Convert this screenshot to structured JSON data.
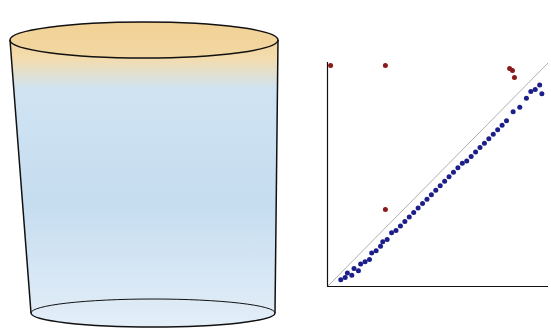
{
  "chart_data": {
    "type": "scatter",
    "xlim": [
      0,
      1
    ],
    "ylim": [
      0,
      1
    ],
    "xticks": [],
    "yticks": [],
    "tick_labels": false,
    "grid": false,
    "series": [
      {
        "color": "#1c1f8a",
        "marker": "circle",
        "values": [
          [
            0.06,
            0.03
          ],
          [
            0.08,
            0.04
          ],
          [
            0.09,
            0.06
          ],
          [
            0.11,
            0.05
          ],
          [
            0.12,
            0.08
          ],
          [
            0.14,
            0.07
          ],
          [
            0.15,
            0.1
          ],
          [
            0.17,
            0.11
          ],
          [
            0.19,
            0.12
          ],
          [
            0.2,
            0.15
          ],
          [
            0.22,
            0.16
          ],
          [
            0.24,
            0.18
          ],
          [
            0.25,
            0.2
          ],
          [
            0.27,
            0.21
          ],
          [
            0.29,
            0.24
          ],
          [
            0.31,
            0.25
          ],
          [
            0.33,
            0.27
          ],
          [
            0.35,
            0.29
          ],
          [
            0.37,
            0.31
          ],
          [
            0.39,
            0.33
          ],
          [
            0.41,
            0.35
          ],
          [
            0.43,
            0.37
          ],
          [
            0.45,
            0.39
          ],
          [
            0.47,
            0.41
          ],
          [
            0.49,
            0.43
          ],
          [
            0.51,
            0.45
          ],
          [
            0.53,
            0.47
          ],
          [
            0.55,
            0.49
          ],
          [
            0.57,
            0.51
          ],
          [
            0.59,
            0.53
          ],
          [
            0.61,
            0.55
          ],
          [
            0.63,
            0.56
          ],
          [
            0.65,
            0.58
          ],
          [
            0.67,
            0.6
          ],
          [
            0.69,
            0.62
          ],
          [
            0.71,
            0.64
          ],
          [
            0.73,
            0.66
          ],
          [
            0.75,
            0.68
          ],
          [
            0.77,
            0.7
          ],
          [
            0.79,
            0.72
          ],
          [
            0.81,
            0.74
          ],
          [
            0.84,
            0.78
          ],
          [
            0.87,
            0.8
          ],
          [
            0.9,
            0.84
          ],
          [
            0.92,
            0.87
          ],
          [
            0.94,
            0.88
          ],
          [
            0.96,
            0.9
          ],
          [
            0.97,
            0.86
          ]
        ]
      },
      {
        "color": "#8b1a1a",
        "marker": "circle",
        "values": [
          [
            0.014,
            0.987
          ],
          [
            0.262,
            0.987
          ],
          [
            0.262,
            0.344
          ],
          [
            0.824,
            0.973
          ],
          [
            0.837,
            0.964
          ],
          [
            0.846,
            0.933
          ]
        ]
      }
    ]
  }
}
